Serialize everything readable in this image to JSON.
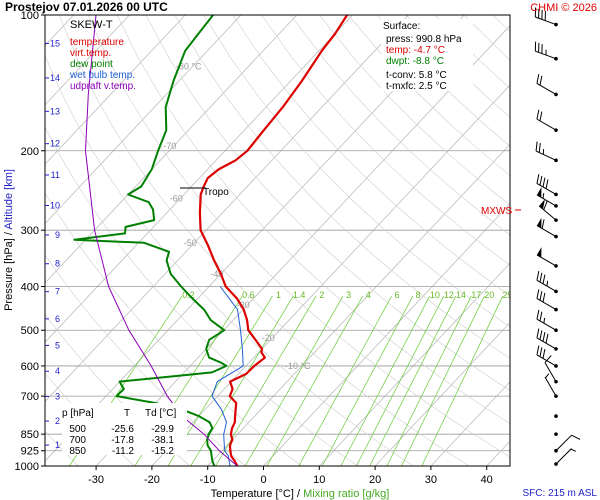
{
  "header": {
    "title": "Prostejov    07.01.2026 00 UTC",
    "copyright": "CHMI © 2026"
  },
  "colors": {
    "temperature": "#dd0000",
    "dew_point": "#008000",
    "wet_bulb": "#1f5fd6",
    "updraft": "#8b00b5",
    "isobar": "#9a9a9a",
    "isotherm": "#bdbdbd",
    "mixing_ratio": "#66cc33",
    "axis_label_blue": "#2222cc"
  },
  "legend": {
    "title": "SKEW-T",
    "items": [
      {
        "label": "temperature",
        "color": "#dd0000"
      },
      {
        "label": "virt.temp.",
        "color": "#dd0000"
      },
      {
        "label": "dew point",
        "color": "#008000"
      },
      {
        "label": "wet bulb temp.",
        "color": "#1f5fd6"
      },
      {
        "label": "udpraft v.temp.",
        "color": "#8b00b5"
      }
    ]
  },
  "surface": {
    "title": "Surface:",
    "rows": [
      {
        "text": "press: 990.8 hPa",
        "color": "#000000"
      },
      {
        "text": "temp: -4.7 °C",
        "color": "#dd0000"
      },
      {
        "text": "dwpt: -8.8 °C",
        "color": "#008000"
      },
      {
        "text": "t-conv: 5.8 °C",
        "color": "#000000"
      },
      {
        "text": "t-mxfc: 2.5 °C",
        "color": "#000000"
      }
    ]
  },
  "level_table": {
    "headers": [
      "p [hPa]",
      "T",
      "Td [°C]"
    ],
    "rows": [
      [
        "500",
        "-25.6",
        "-29.9"
      ],
      [
        "700",
        "-17.8",
        "-38.1"
      ],
      [
        "850",
        "-11.2",
        "-15.2"
      ]
    ]
  },
  "labels": {
    "tropo": "Tropo",
    "mxws": "MXWS",
    "sfc": "SFC: 215 m ASL",
    "y_left_a": "Pressure [hPa]  /  ",
    "y_left_b": "Altitude [km]",
    "x_a": "Temperature [°C]  /  ",
    "x_b": "Mixing ratio [g/kg]"
  },
  "chart_data": {
    "type": "line",
    "title": "SKEW-T",
    "xlabel": "Temperature [°C] / Mixing ratio [g/kg]",
    "ylabel": "Pressure [hPa] / Altitude [km]",
    "x_ticks": [
      "-30",
      "-20",
      "-10",
      "0",
      "10",
      "20",
      "30",
      "40"
    ],
    "y_ticks": [
      "100",
      "200",
      "300",
      "400",
      "500",
      "600",
      "700",
      "850",
      "925",
      "1000"
    ],
    "altitude_ticks": [
      "1",
      "2",
      "3",
      "4",
      "5",
      "6",
      "7",
      "8",
      "9",
      "10",
      "11",
      "12",
      "13",
      "14",
      "15"
    ],
    "isotherm_labels": [
      "-80 °C",
      "-70",
      "-60",
      "-50",
      "-40",
      "-30",
      "-20",
      "-10 °C"
    ],
    "mixing_ratio_labels": [
      "0.2",
      "0.6",
      "1",
      "1.4",
      "2",
      "3",
      "4",
      "6",
      "8",
      "10",
      "12",
      "14",
      "17",
      "20",
      "25"
    ],
    "series": [
      {
        "name": "temperature",
        "points": [
          [
            1000,
            -4.7
          ],
          [
            975,
            -6.0
          ],
          [
            950,
            -7.5
          ],
          [
            925,
            -8.5
          ],
          [
            900,
            -9.5
          ],
          [
            875,
            -10.0
          ],
          [
            850,
            -11.2
          ],
          [
            825,
            -12.0
          ],
          [
            800,
            -12.5
          ],
          [
            775,
            -13.5
          ],
          [
            750,
            -14.5
          ],
          [
            725,
            -15.5
          ],
          [
            700,
            -17.8
          ],
          [
            675,
            -18.5
          ],
          [
            650,
            -20.2
          ],
          [
            625,
            -18.6
          ],
          [
            600,
            -18.5
          ],
          [
            575,
            -18.0
          ],
          [
            560,
            -19.5
          ],
          [
            550,
            -20.0
          ],
          [
            525,
            -22.7
          ],
          [
            500,
            -25.6
          ],
          [
            475,
            -27.5
          ],
          [
            450,
            -29.9
          ],
          [
            425,
            -33.0
          ],
          [
            400,
            -37.0
          ],
          [
            375,
            -40.0
          ],
          [
            350,
            -43.5
          ],
          [
            325,
            -47.0
          ],
          [
            300,
            -51.0
          ],
          [
            275,
            -54.0
          ],
          [
            250,
            -57.0
          ],
          [
            240,
            -57.8
          ],
          [
            230,
            -58.5
          ],
          [
            220,
            -58.0
          ],
          [
            210,
            -56.5
          ],
          [
            200,
            -56.0
          ],
          [
            180,
            -56.5
          ],
          [
            160,
            -57.0
          ],
          [
            140,
            -58.0
          ],
          [
            120,
            -59.5
          ],
          [
            110,
            -60.0
          ],
          [
            100,
            -61.0
          ]
        ]
      },
      {
        "name": "dew point",
        "points": [
          [
            1000,
            -8.8
          ],
          [
            975,
            -10.0
          ],
          [
            950,
            -11.0
          ],
          [
            925,
            -12.0
          ],
          [
            900,
            -13.5
          ],
          [
            875,
            -14.5
          ],
          [
            850,
            -15.2
          ],
          [
            825,
            -15.5
          ],
          [
            800,
            -17.0
          ],
          [
            775,
            -20.0
          ],
          [
            750,
            -24.0
          ],
          [
            725,
            -30.0
          ],
          [
            700,
            -38.1
          ],
          [
            675,
            -38.0
          ],
          [
            650,
            -40.0
          ],
          [
            630,
            -30.0
          ],
          [
            620,
            -25.0
          ],
          [
            600,
            -23.5
          ],
          [
            590,
            -25.0
          ],
          [
            575,
            -28.0
          ],
          [
            550,
            -30.0
          ],
          [
            525,
            -31.0
          ],
          [
            500,
            -29.9
          ],
          [
            475,
            -34.0
          ],
          [
            450,
            -37.0
          ],
          [
            425,
            -41.0
          ],
          [
            400,
            -45.0
          ],
          [
            375,
            -49.0
          ],
          [
            350,
            -52.0
          ],
          [
            335,
            -53.0
          ],
          [
            320,
            -59.0
          ],
          [
            315,
            -72.0
          ],
          [
            305,
            -64.0
          ],
          [
            295,
            -65.0
          ],
          [
            285,
            -61.0
          ],
          [
            270,
            -63.0
          ],
          [
            260,
            -65.0
          ],
          [
            250,
            -70.0
          ],
          [
            240,
            -69.0
          ],
          [
            220,
            -70.0
          ],
          [
            200,
            -72.0
          ],
          [
            180,
            -74.0
          ],
          [
            160,
            -78.0
          ],
          [
            140,
            -81.0
          ],
          [
            120,
            -84.0
          ],
          [
            110,
            -84.5
          ],
          [
            100,
            -85.0
          ]
        ]
      },
      {
        "name": "wet bulb temp.",
        "points": [
          [
            1000,
            -6.0
          ],
          [
            950,
            -8.0
          ],
          [
            925,
            -9.5
          ],
          [
            900,
            -10.5
          ],
          [
            850,
            -12.5
          ],
          [
            800,
            -14.0
          ],
          [
            750,
            -17.0
          ],
          [
            700,
            -21.0
          ],
          [
            650,
            -22.5
          ],
          [
            600,
            -20.5
          ],
          [
            550,
            -23.5
          ],
          [
            500,
            -27.0
          ],
          [
            450,
            -31.0
          ],
          [
            400,
            -38.0
          ]
        ]
      },
      {
        "name": "udpraft v.temp.",
        "points": [
          [
            1000,
            -4.7
          ],
          [
            925,
            -10.5
          ],
          [
            850,
            -16.0
          ],
          [
            775,
            -23.0
          ],
          [
            700,
            -29.0
          ],
          [
            600,
            -37.0
          ],
          [
            500,
            -47.0
          ],
          [
            400,
            -58.0
          ],
          [
            300,
            -70.0
          ],
          [
            200,
            -85.0
          ],
          [
            150,
            -94.0
          ],
          [
            100,
            -106.0
          ]
        ]
      }
    ],
    "wind_barbs": [
      {
        "p": 105,
        "dir": 290,
        "kt": 40
      },
      {
        "p": 125,
        "dir": 290,
        "kt": 35
      },
      {
        "p": 150,
        "dir": 300,
        "kt": 20
      },
      {
        "p": 180,
        "dir": 300,
        "kt": 20
      },
      {
        "p": 210,
        "dir": 295,
        "kt": 25
      },
      {
        "p": 250,
        "dir": 300,
        "kt": 40
      },
      {
        "p": 265,
        "dir": 300,
        "kt": 55
      },
      {
        "p": 285,
        "dir": 310,
        "kt": 60
      },
      {
        "p": 310,
        "dir": 300,
        "kt": 60
      },
      {
        "p": 360,
        "dir": 300,
        "kt": 50
      },
      {
        "p": 410,
        "dir": 300,
        "kt": 35
      },
      {
        "p": 450,
        "dir": 300,
        "kt": 30
      },
      {
        "p": 500,
        "dir": 300,
        "kt": 25
      },
      {
        "p": 550,
        "dir": 300,
        "kt": 40
      },
      {
        "p": 600,
        "dir": 300,
        "kt": 30
      },
      {
        "p": 650,
        "dir": 330,
        "kt": 10
      },
      {
        "p": 700,
        "dir": 330,
        "kt": 5
      },
      {
        "p": 775,
        "dir": 0,
        "kt": 0
      },
      {
        "p": 850,
        "dir": 0,
        "kt": 0
      },
      {
        "p": 925,
        "dir": 45,
        "kt": 10
      },
      {
        "p": 990,
        "dir": 45,
        "kt": 5
      }
    ]
  }
}
